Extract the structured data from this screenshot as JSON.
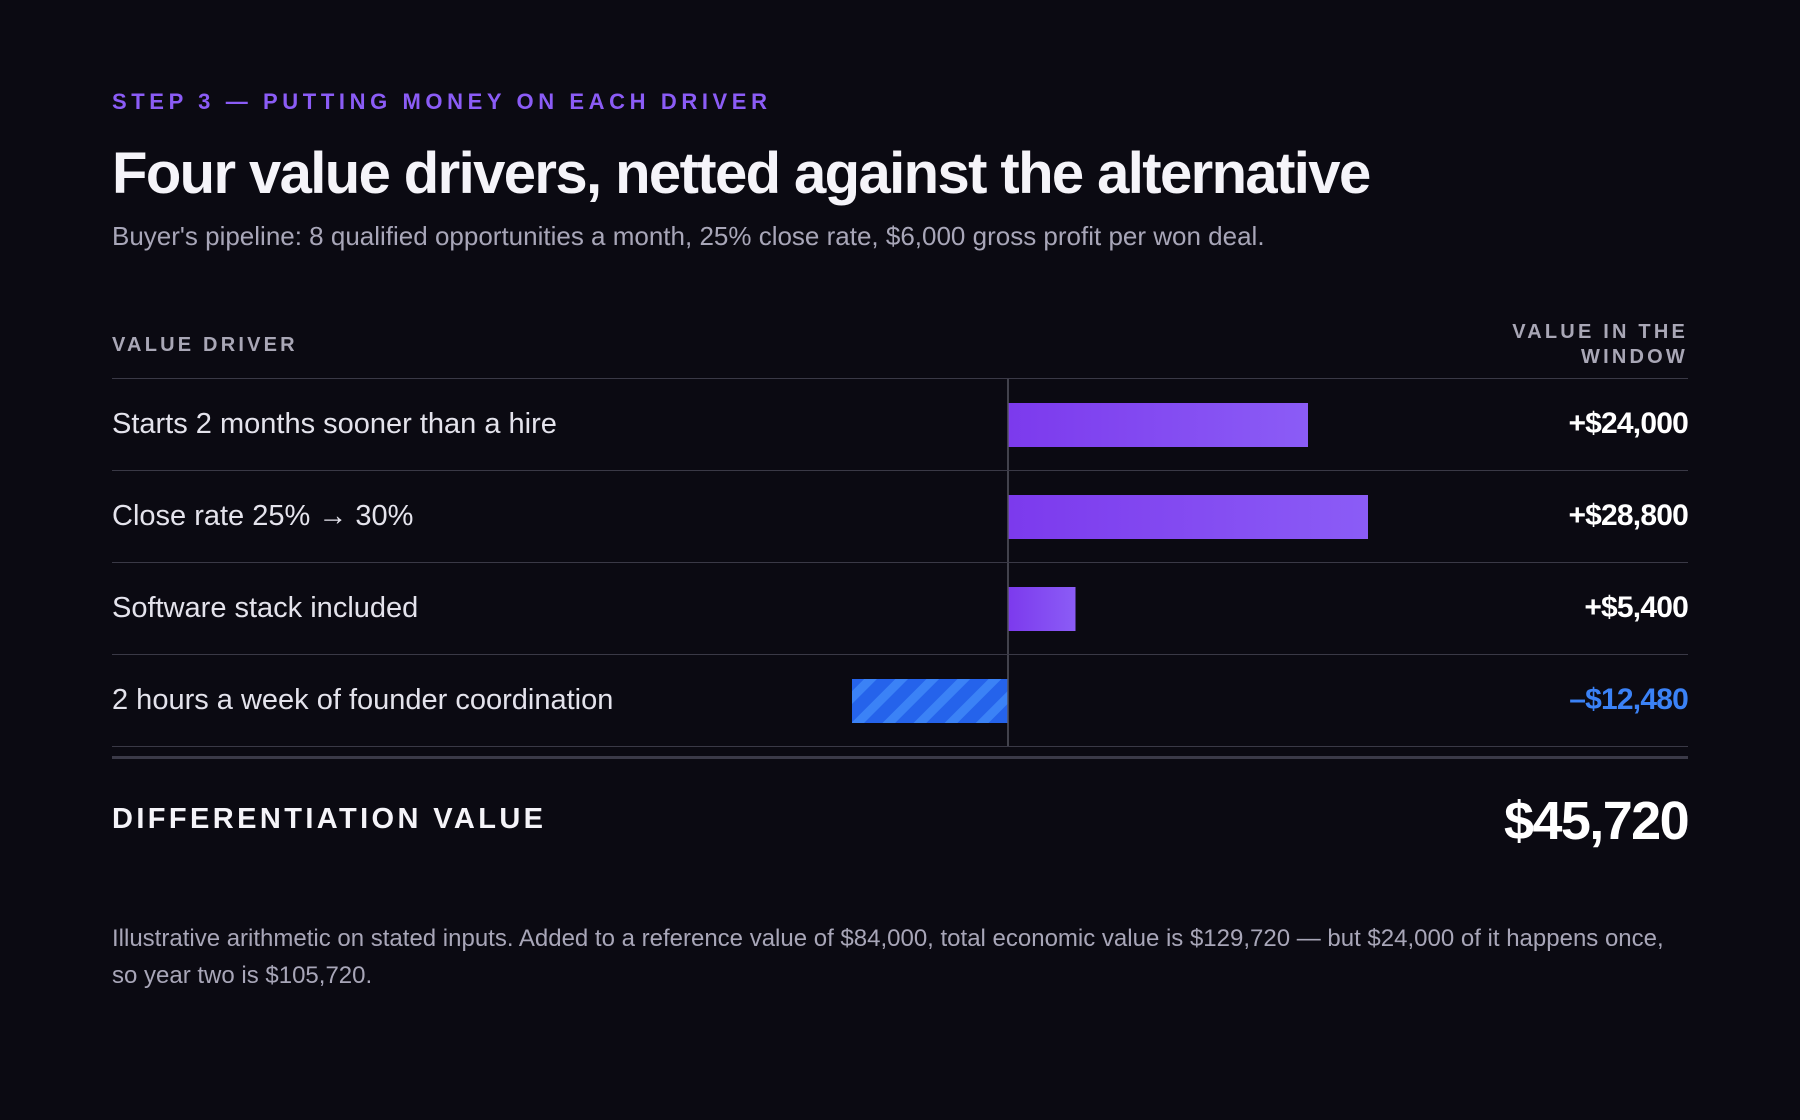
{
  "eyebrow": "STEP 3 — PUTTING MONEY ON EACH DRIVER",
  "title": "Four value drivers, netted against the alternative",
  "subtitle": "Buyer's pipeline: 8 qualified opportunities a month, 25% close rate, $6,000 gross profit per won deal.",
  "table": {
    "col_driver": "VALUE DRIVER",
    "col_value": "VALUE IN THE WINDOW"
  },
  "colors": {
    "background": "#0b0a12",
    "positive_bar_start": "#7c3aed",
    "positive_bar_end": "#8b5cf6",
    "negative_bar": "#2563eb",
    "negative_bar_stripe": "#3b82f6",
    "negative_text": "#3b82f6",
    "accent": "#8b5cf6"
  },
  "chart_data": {
    "type": "bar",
    "orientation": "horizontal",
    "categories": [
      "Starts 2 months sooner than a hire",
      "Close rate 25% → 30%",
      "Software stack included",
      "2 hours a week of founder coordination"
    ],
    "values": [
      24000,
      28800,
      5400,
      -12480
    ],
    "value_labels": [
      "+$24,000",
      "+$28,800",
      "+$5,400",
      "–$12,480"
    ],
    "xlabel": "",
    "ylabel": "",
    "grid": false,
    "legend": "none"
  },
  "total": {
    "label": "DIFFERENTIATION VALUE",
    "value": "$45,720"
  },
  "footnote": "Illustrative arithmetic on stated inputs. Added to a reference value of $84,000, total economic value is $129,720 — but $24,000 of it happens once, so year two is $105,720."
}
